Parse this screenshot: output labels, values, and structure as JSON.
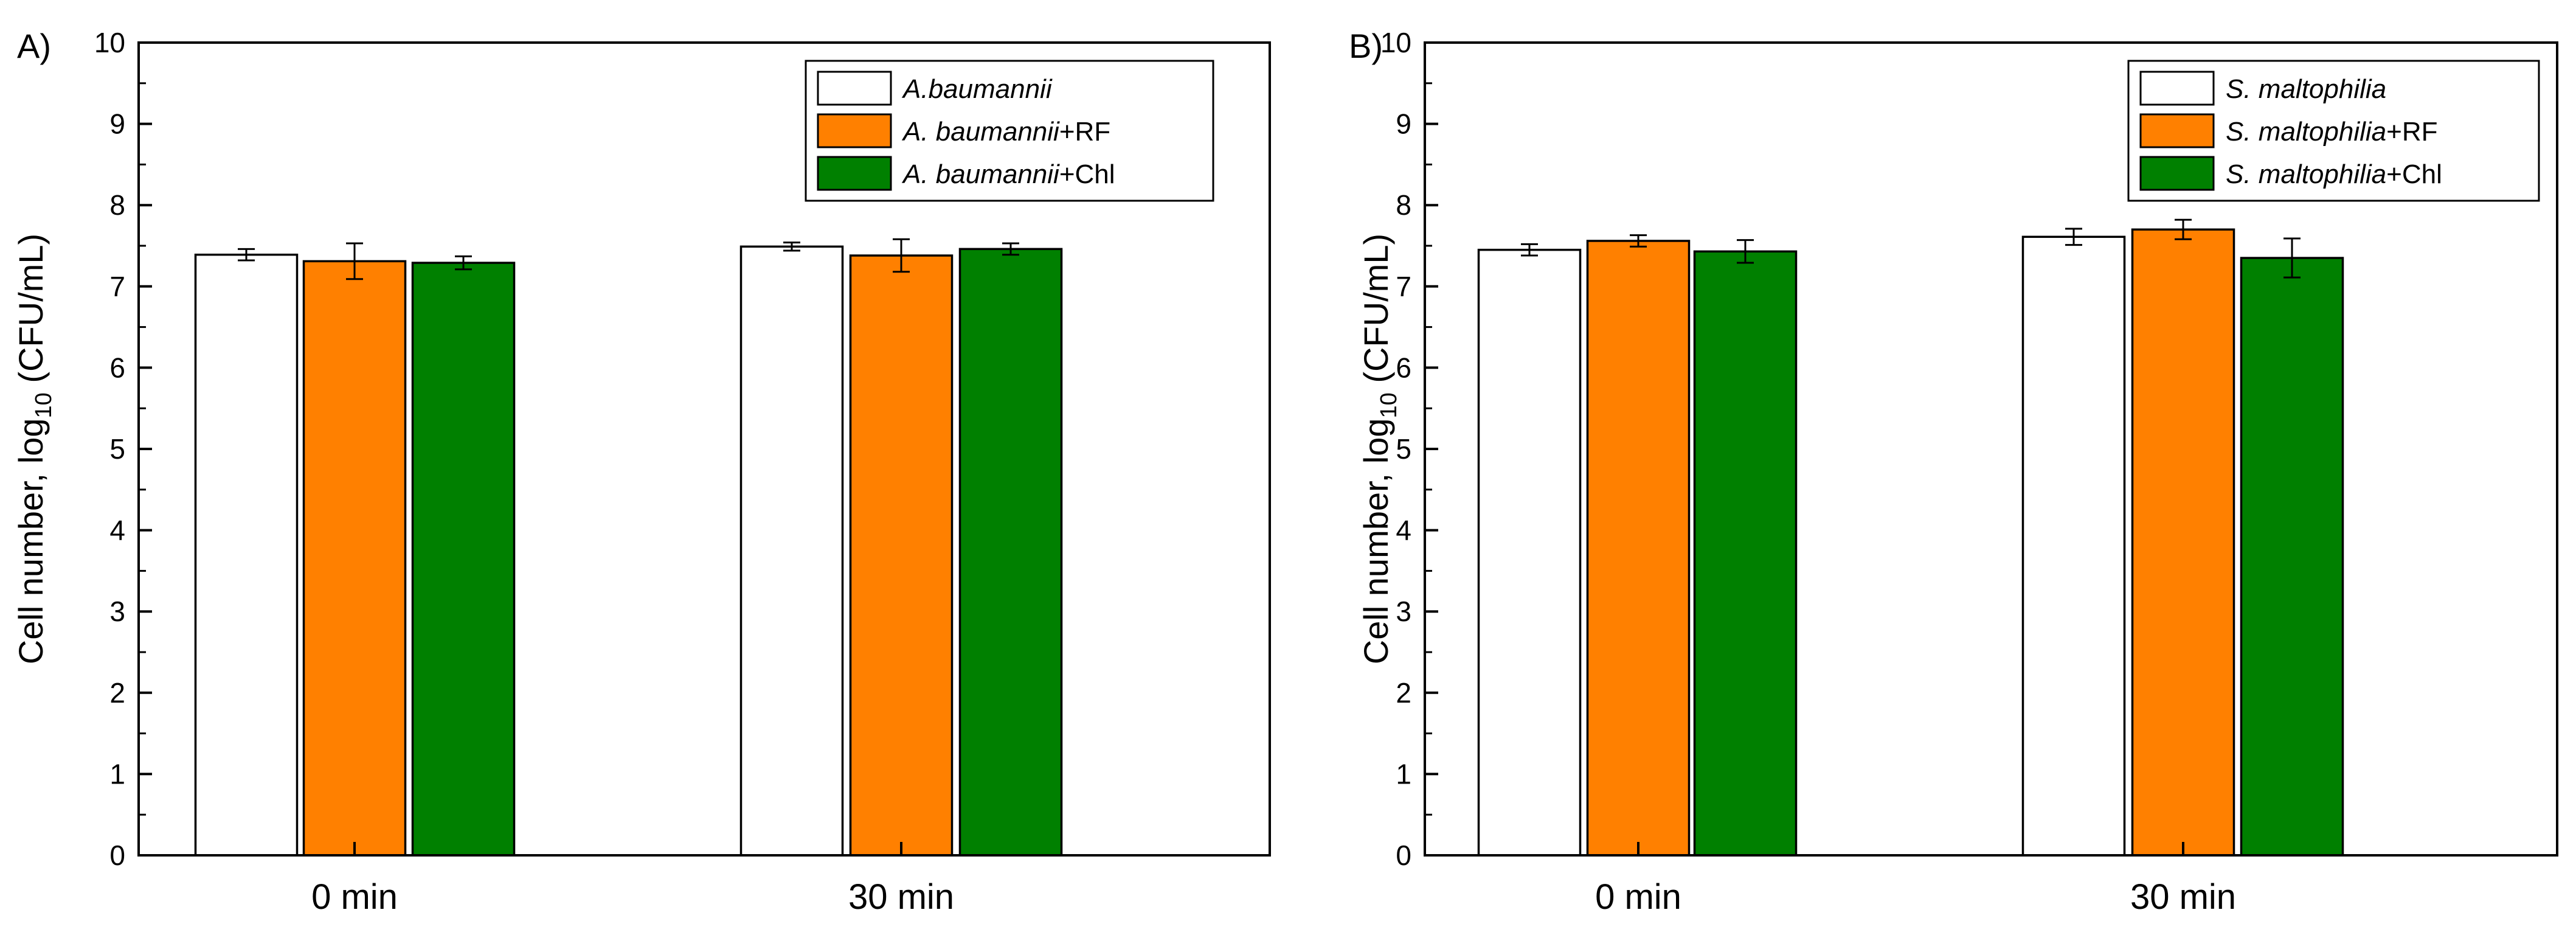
{
  "chart_data": [
    {
      "panel_label": "A)",
      "type": "bar",
      "ylabel": {
        "main": "Cell number, log",
        "sub": "10",
        "unit": " (CFU/mL)"
      },
      "ylim": [
        0,
        10
      ],
      "yticks": [
        "0",
        "1",
        "2",
        "3",
        "4",
        "5",
        "6",
        "7",
        "8",
        "9",
        "10"
      ],
      "categories": [
        "0 min",
        "30 min"
      ],
      "legend_position": "top-right",
      "series": [
        {
          "legend_italic": "A.baumannii",
          "legend_suffix": "",
          "color": "#ffffff",
          "values": [
            7.39,
            7.49
          ],
          "errors": [
            0.07,
            0.05
          ]
        },
        {
          "legend_italic": "A. baumannii",
          "legend_suffix": "+RF",
          "color": "#ff8000",
          "values": [
            7.31,
            7.38
          ],
          "errors": [
            0.22,
            0.2
          ]
        },
        {
          "legend_italic": "A. baumannii",
          "legend_suffix": "+Chl",
          "color": "#008000",
          "values": [
            7.29,
            7.46
          ],
          "errors": [
            0.08,
            0.07
          ]
        }
      ]
    },
    {
      "panel_label": "B)",
      "type": "bar",
      "ylabel": {
        "main": "Cell number, log",
        "sub": "10",
        "unit": " (CFU/mL)"
      },
      "ylim": [
        0,
        10
      ],
      "yticks": [
        "0",
        "1",
        "2",
        "3",
        "4",
        "5",
        "6",
        "7",
        "8",
        "9",
        "10"
      ],
      "categories": [
        "0 min",
        "30 min"
      ],
      "legend_position": "top-right",
      "series": [
        {
          "legend_italic": "S. maltophilia",
          "legend_suffix": "",
          "color": "#ffffff",
          "values": [
            7.45,
            7.61
          ],
          "errors": [
            0.07,
            0.1
          ]
        },
        {
          "legend_italic": "S. maltophilia",
          "legend_suffix": "+RF",
          "color": "#ff8000",
          "values": [
            7.56,
            7.7
          ],
          "errors": [
            0.07,
            0.12
          ]
        },
        {
          "legend_italic": "S. maltophilia",
          "legend_suffix": "+Chl",
          "color": "#008000",
          "values": [
            7.43,
            7.35
          ],
          "errors": [
            0.14,
            0.24
          ]
        }
      ]
    }
  ]
}
